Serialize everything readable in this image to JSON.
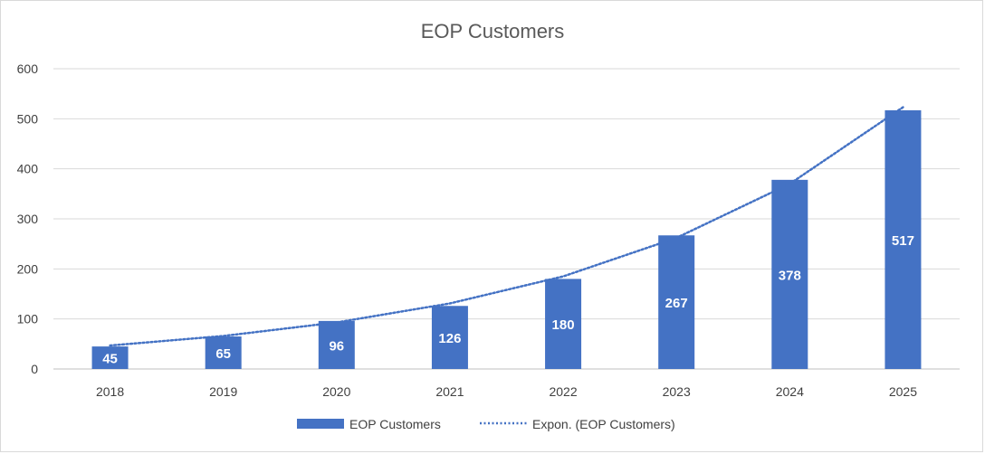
{
  "chart_data": {
    "type": "bar",
    "title": "EOP Customers",
    "categories": [
      "2018",
      "2019",
      "2020",
      "2021",
      "2022",
      "2023",
      "2024",
      "2025"
    ],
    "series": [
      {
        "name": "EOP Customers",
        "values": [
          45,
          65,
          96,
          126,
          180,
          267,
          378,
          517
        ],
        "color": "#4472c4"
      }
    ],
    "trendline": {
      "name": "Expon. (EOP Customers)",
      "type": "exponential",
      "color": "#4472c4",
      "style": "dotted",
      "values": [
        47,
        66,
        93,
        131,
        185,
        262,
        370,
        523
      ]
    },
    "ylim": [
      0,
      600
    ],
    "yticks": [
      0,
      100,
      200,
      300,
      400,
      500,
      600
    ],
    "grid": true,
    "legend_position": "bottom",
    "data_labels": true
  }
}
